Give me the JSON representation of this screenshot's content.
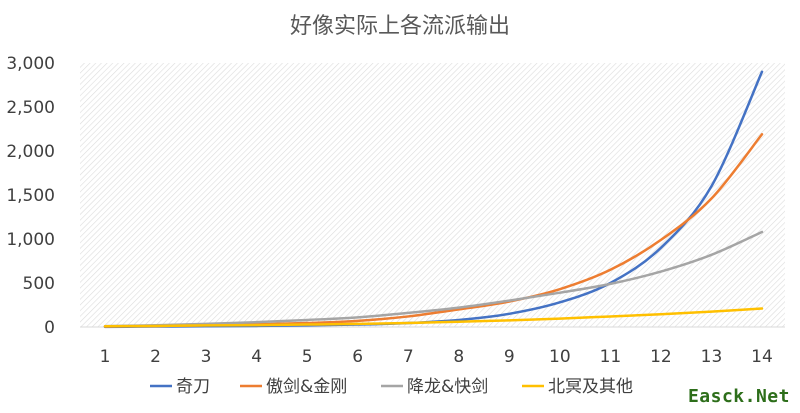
{
  "chart_data": {
    "type": "line",
    "title": "好像实际上各流派输出",
    "xlabel": "",
    "ylabel": "",
    "x": [
      1,
      2,
      3,
      4,
      5,
      6,
      7,
      8,
      9,
      10,
      11,
      12,
      13,
      14
    ],
    "ylim": [
      0,
      3000
    ],
    "yticks": [
      0,
      500,
      1000,
      1500,
      2000,
      2500,
      3000
    ],
    "ytick_labels": [
      "0",
      "500",
      "1,000",
      "1,500",
      "2,000",
      "2,500",
      "3,000"
    ],
    "grid": "hatched-plot-area",
    "legend_position": "bottom",
    "series": [
      {
        "name": "奇刀",
        "color": "#4472c4",
        "values": [
          2,
          5,
          8,
          12,
          18,
          28,
          45,
          80,
          150,
          280,
          500,
          900,
          1600,
          2900
        ]
      },
      {
        "name": "傲剑&金刚",
        "color": "#ed7d31",
        "values": [
          5,
          12,
          20,
          30,
          45,
          70,
          120,
          200,
          290,
          430,
          650,
          990,
          1460,
          2190
        ]
      },
      {
        "name": "降龙&快剑",
        "color": "#a5a5a5",
        "values": [
          10,
          20,
          35,
          55,
          80,
          110,
          160,
          220,
          300,
          390,
          490,
          630,
          820,
          1080
        ]
      },
      {
        "name": "北冥及其他",
        "color": "#ffc000",
        "values": [
          8,
          12,
          18,
          22,
          28,
          35,
          45,
          60,
          75,
          95,
          120,
          145,
          175,
          210
        ]
      }
    ]
  },
  "watermark": "Easck.Net"
}
